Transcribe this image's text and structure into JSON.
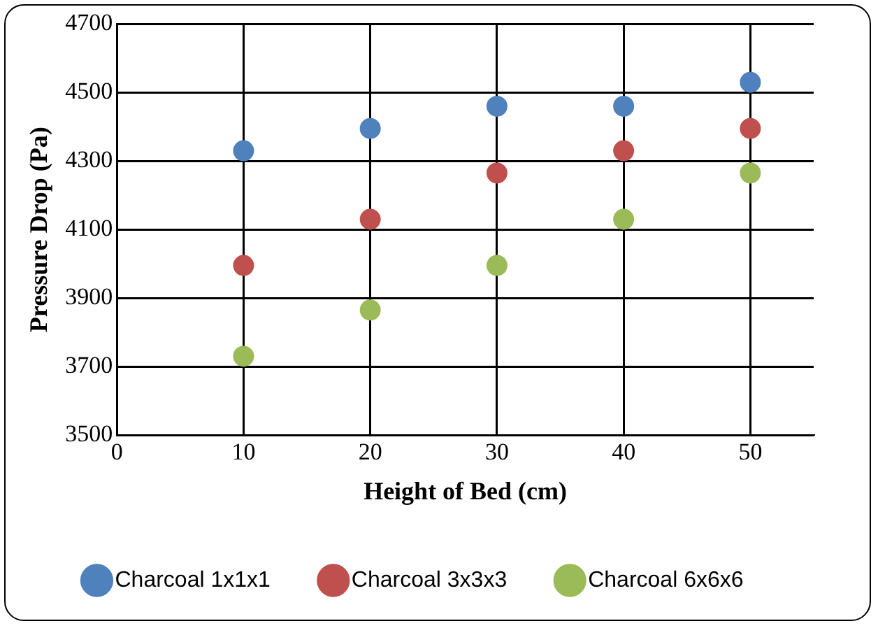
{
  "chart_data": {
    "type": "scatter",
    "xlabel": "Height of Bed (cm)",
    "ylabel": "Pressure Drop (Pa)",
    "x": [
      10,
      20,
      30,
      40,
      50
    ],
    "series": [
      {
        "name": "Charcoal 1x1x1",
        "color": "#4f81bd",
        "values": [
          4330,
          4395,
          4460,
          4460,
          4530
        ]
      },
      {
        "name": "Charcoal 3x3x3",
        "color": "#c0504d",
        "values": [
          3995,
          4130,
          4265,
          4330,
          4395
        ]
      },
      {
        "name": "Charcoal 6x6x6",
        "color": "#9bbb59",
        "values": [
          3730,
          3865,
          3995,
          4130,
          4265
        ]
      }
    ],
    "xlim": [
      0,
      55
    ],
    "xticks": [
      0,
      10,
      20,
      30,
      40,
      50
    ],
    "ylim": [
      3500,
      4700
    ],
    "yticks": [
      3500,
      3700,
      3900,
      4100,
      4300,
      4500,
      4700
    ],
    "grid": true,
    "legend": "bottom",
    "marker": "circle"
  }
}
